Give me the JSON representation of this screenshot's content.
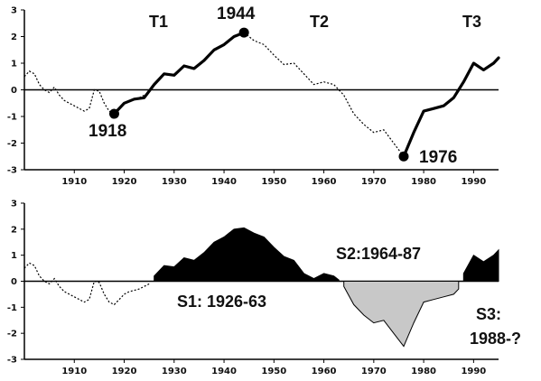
{
  "chart_data": [
    {
      "type": "line",
      "xlim": [
        1900,
        1995
      ],
      "ylim": [
        -3,
        3
      ],
      "yticks": [
        "3",
        "2",
        "1",
        "0",
        "-1",
        "-2",
        "-3"
      ],
      "xticks": [
        "1910",
        "1920",
        "1930",
        "1940",
        "1950",
        "1960",
        "1970",
        "1980",
        "1990"
      ],
      "zero_line": true,
      "grid": false,
      "series": [
        {
          "style": "dotted",
          "x": [
            1900,
            1901,
            1902,
            1903,
            1904,
            1905,
            1906,
            1907,
            1908,
            1909,
            1910,
            1911,
            1912,
            1913,
            1914,
            1915,
            1916,
            1917,
            1918,
            1919,
            1920,
            1921,
            1922,
            1923,
            1924,
            1925
          ],
          "y": [
            0.5,
            0.7,
            0.6,
            0.2,
            0.0,
            -0.1,
            0.1,
            -0.2,
            -0.4,
            -0.5,
            -0.6,
            -0.7,
            -0.8,
            -0.7,
            0.0,
            -0.05,
            -0.5,
            -0.8,
            -0.9,
            -0.7,
            -0.5,
            -0.4,
            -0.35,
            -0.3,
            -0.2,
            -0.1
          ]
        },
        {
          "style": "bold",
          "x": [
            1918,
            1920,
            1922,
            1924,
            1926,
            1928,
            1930,
            1932,
            1934,
            1936,
            1938,
            1940,
            1942,
            1944
          ],
          "y": [
            -0.9,
            -0.5,
            -0.35,
            -0.3,
            0.2,
            0.6,
            0.55,
            0.9,
            0.8,
            1.1,
            1.5,
            1.7,
            2.0,
            2.15
          ]
        },
        {
          "style": "dotted",
          "x": [
            1944,
            1946,
            1948,
            1950,
            1952,
            1954,
            1956,
            1958,
            1960,
            1962,
            1964,
            1966,
            1968,
            1970,
            1972,
            1974,
            1976
          ],
          "y": [
            2.15,
            1.85,
            1.7,
            1.3,
            0.95,
            1.0,
            0.6,
            0.2,
            0.3,
            0.2,
            -0.2,
            -0.9,
            -1.3,
            -1.6,
            -1.5,
            -2.0,
            -2.5
          ]
        },
        {
          "style": "bold",
          "x": [
            1976,
            1978,
            1980,
            1982,
            1984,
            1986,
            1988,
            1990,
            1992,
            1994,
            1995
          ],
          "y": [
            -2.5,
            -1.6,
            -0.8,
            -0.7,
            -0.6,
            -0.3,
            0.3,
            1.0,
            0.75,
            1.0,
            1.2
          ]
        }
      ],
      "points": [
        {
          "x": 1918,
          "y": -0.9,
          "label": "1918"
        },
        {
          "x": 1944,
          "y": 2.15,
          "label": "1944"
        },
        {
          "x": 1976,
          "y": -2.5,
          "label": "1976"
        }
      ],
      "annotations": [
        "T1",
        "T2",
        "T3"
      ]
    },
    {
      "type": "area",
      "xlim": [
        1900,
        1995
      ],
      "ylim": [
        -3,
        3
      ],
      "yticks": [
        "3",
        "2",
        "1",
        "0",
        "-1",
        "-2",
        "-3"
      ],
      "xticks": [
        "1910",
        "1920",
        "1930",
        "1940",
        "1950",
        "1960",
        "1970",
        "1980",
        "1990"
      ],
      "zero_line": true,
      "grid": false,
      "series": [
        {
          "style": "dotted",
          "x": [
            1900,
            1901,
            1902,
            1903,
            1904,
            1905,
            1906,
            1907,
            1908,
            1909,
            1910,
            1911,
            1912,
            1913,
            1914,
            1915,
            1916,
            1917,
            1918,
            1919,
            1920,
            1921,
            1922,
            1923,
            1924,
            1925
          ],
          "y": [
            0.5,
            0.7,
            0.6,
            0.2,
            0.0,
            -0.1,
            0.1,
            -0.2,
            -0.4,
            -0.5,
            -0.6,
            -0.7,
            -0.8,
            -0.7,
            0.0,
            -0.05,
            -0.5,
            -0.8,
            -0.9,
            -0.7,
            -0.5,
            -0.4,
            -0.35,
            -0.3,
            -0.2,
            -0.1
          ]
        },
        {
          "fill": "#000000",
          "x": [
            1926,
            1928,
            1930,
            1932,
            1934,
            1936,
            1938,
            1940,
            1942,
            1944,
            1946,
            1948,
            1950,
            1952,
            1954,
            1956,
            1958,
            1960,
            1962,
            1963
          ],
          "y": [
            0.2,
            0.6,
            0.55,
            0.9,
            0.8,
            1.1,
            1.5,
            1.7,
            2.0,
            2.05,
            1.85,
            1.7,
            1.3,
            0.95,
            0.8,
            0.3,
            0.1,
            0.3,
            0.2,
            0.05
          ]
        },
        {
          "fill": "#c8c8c8",
          "x": [
            1964,
            1966,
            1968,
            1970,
            1972,
            1974,
            1976,
            1978,
            1980,
            1982,
            1984,
            1986,
            1987
          ],
          "y": [
            -0.2,
            -0.9,
            -1.3,
            -1.6,
            -1.5,
            -2.0,
            -2.5,
            -1.6,
            -0.8,
            -0.7,
            -0.6,
            -0.5,
            -0.3
          ]
        },
        {
          "fill": "#000000",
          "x": [
            1988,
            1990,
            1992,
            1994,
            1995
          ],
          "y": [
            0.3,
            1.0,
            0.75,
            1.0,
            1.2
          ]
        }
      ],
      "annotations": [
        "S1: 1926-63",
        "S2:1964-87",
        "S3:",
        "1988-?"
      ]
    }
  ]
}
